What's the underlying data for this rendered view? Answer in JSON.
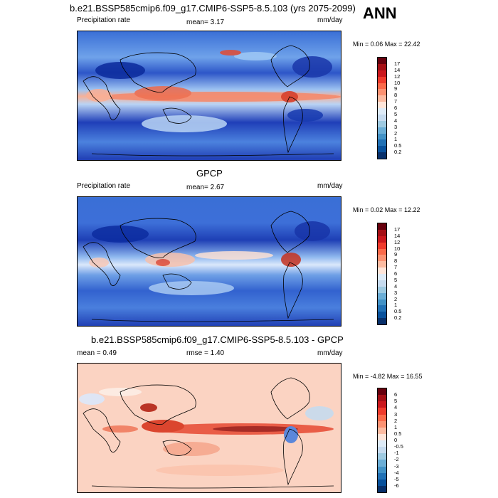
{
  "title": "b.e21.BSSP585cmip6.f09_g17.CMIP6-SSP5-8.5.103 (yrs 2075-2099)",
  "season": "ANN",
  "panels": [
    {
      "subtitle": "",
      "left_label": "Precipitation rate",
      "center_label": "mean=  3.17",
      "right_label": "mm/day",
      "stat": "Min =   0.06 Max =  22.42",
      "colorbar": {
        "labels": [
          "17",
          "14",
          "12",
          "10",
          "9",
          "8",
          "7",
          "6",
          "5",
          "4",
          "3",
          "2",
          "1",
          "0.5",
          "0.2"
        ],
        "colors": [
          "#67000d",
          "#a50f15",
          "#cb181d",
          "#ef3b2c",
          "#fb6a4a",
          "#fc9272",
          "#fcbba1",
          "#fee5d9",
          "#deebf7",
          "#c6dbef",
          "#9ecae1",
          "#6baed6",
          "#4292c6",
          "#2171b5",
          "#08519c",
          "#08306b"
        ]
      }
    },
    {
      "subtitle": "GPCP",
      "left_label": "Precipitation rate",
      "center_label": "mean=  2.67",
      "right_label": "mm/day",
      "stat": "Min =   0.02 Max =  12.22",
      "colorbar": {
        "labels": [
          "17",
          "14",
          "12",
          "10",
          "9",
          "8",
          "7",
          "6",
          "5",
          "4",
          "3",
          "2",
          "1",
          "0.5",
          "0.2"
        ],
        "colors": [
          "#67000d",
          "#a50f15",
          "#cb181d",
          "#ef3b2c",
          "#fb6a4a",
          "#fc9272",
          "#fcbba1",
          "#fee5d9",
          "#deebf7",
          "#c6dbef",
          "#9ecae1",
          "#6baed6",
          "#4292c6",
          "#2171b5",
          "#08519c",
          "#08306b"
        ]
      }
    },
    {
      "subtitle": "b.e21.BSSP585cmip6.f09_g17.CMIP6-SSP5-8.5.103 - GPCP",
      "left_label": "mean =   0.49",
      "center_label": "rmse =  1.40",
      "right_label": "mm/day",
      "stat": "Min =  -4.82 Max =  16.55",
      "colorbar": {
        "labels": [
          "6",
          "5",
          "4",
          "3",
          "2",
          "1",
          "0.5",
          "0",
          "-0.5",
          "-1",
          "-2",
          "-3",
          "-4",
          "-5",
          "-6"
        ],
        "colors": [
          "#67000d",
          "#a50f15",
          "#cb181d",
          "#ef3b2c",
          "#fb6a4a",
          "#fc9272",
          "#fcbba1",
          "#fee5d9",
          "#deebf7",
          "#c6dbef",
          "#9ecae1",
          "#6baed6",
          "#4292c6",
          "#2171b5",
          "#08519c",
          "#08306b"
        ]
      }
    }
  ]
}
